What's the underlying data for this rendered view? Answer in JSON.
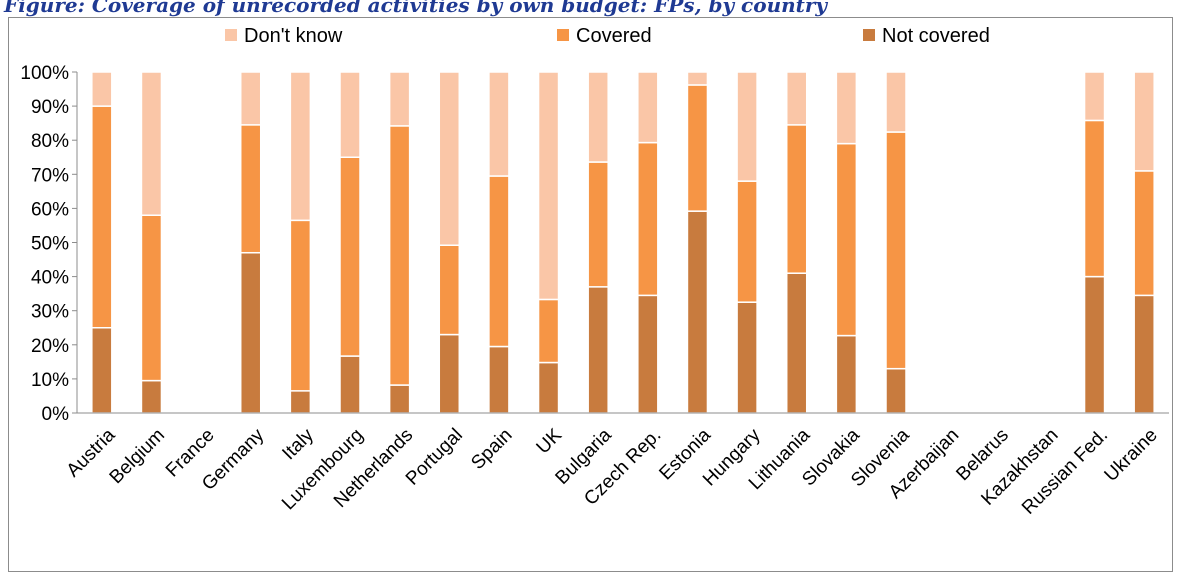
{
  "figure_title": "Figure: Coverage of unrecorded activities by own budget: FPs, by country",
  "chart_data": {
    "type": "bar",
    "stacked": true,
    "title": "Figure: Coverage of unrecorded activities by own budget: FPs, by country",
    "xlabel": "",
    "ylabel": "",
    "ylim": [
      0,
      100
    ],
    "y_ticks": [
      "0%",
      "10%",
      "20%",
      "30%",
      "40%",
      "50%",
      "60%",
      "70%",
      "80%",
      "90%",
      "100%"
    ],
    "grid": false,
    "legend_position": "top",
    "categories": [
      "Austria",
      "Belgium",
      "France",
      "Germany",
      "Italy",
      "Luxembourg",
      "Netherlands",
      "Portugal",
      "Spain",
      "UK",
      "Bulgaria",
      "Czech Rep.",
      "Estonia",
      "Hungary",
      "Lithuania",
      "Slovakia",
      "Slovenia",
      "Azerbaijan",
      "Belarus",
      "Kazakhstan",
      "Russian Fed.",
      "Ukraine"
    ],
    "series": [
      {
        "name": "Not covered",
        "color": "#c87b3e",
        "values": [
          25,
          9.5,
          0,
          47,
          6.5,
          16.7,
          8.2,
          23,
          19.5,
          14.8,
          37,
          34.5,
          59.2,
          32.5,
          41,
          22.7,
          13,
          0,
          0,
          0,
          40,
          34.5
        ]
      },
      {
        "name": "Covered",
        "color": "#f69545",
        "values": [
          65,
          48.5,
          0,
          37.5,
          50,
          58.3,
          76,
          26.2,
          50,
          18.5,
          36.6,
          44.8,
          37,
          35.5,
          43.5,
          56.3,
          69.4,
          0,
          0,
          0,
          45.8,
          36.5
        ]
      },
      {
        "name": "Don't know",
        "color": "#fac6a7",
        "values": [
          10,
          42,
          0,
          15.5,
          43.5,
          25,
          15.8,
          50.8,
          30.5,
          66.7,
          26.4,
          20.7,
          3.8,
          32,
          15.5,
          21,
          17.6,
          0,
          0,
          0,
          14.2,
          29
        ]
      }
    ]
  }
}
